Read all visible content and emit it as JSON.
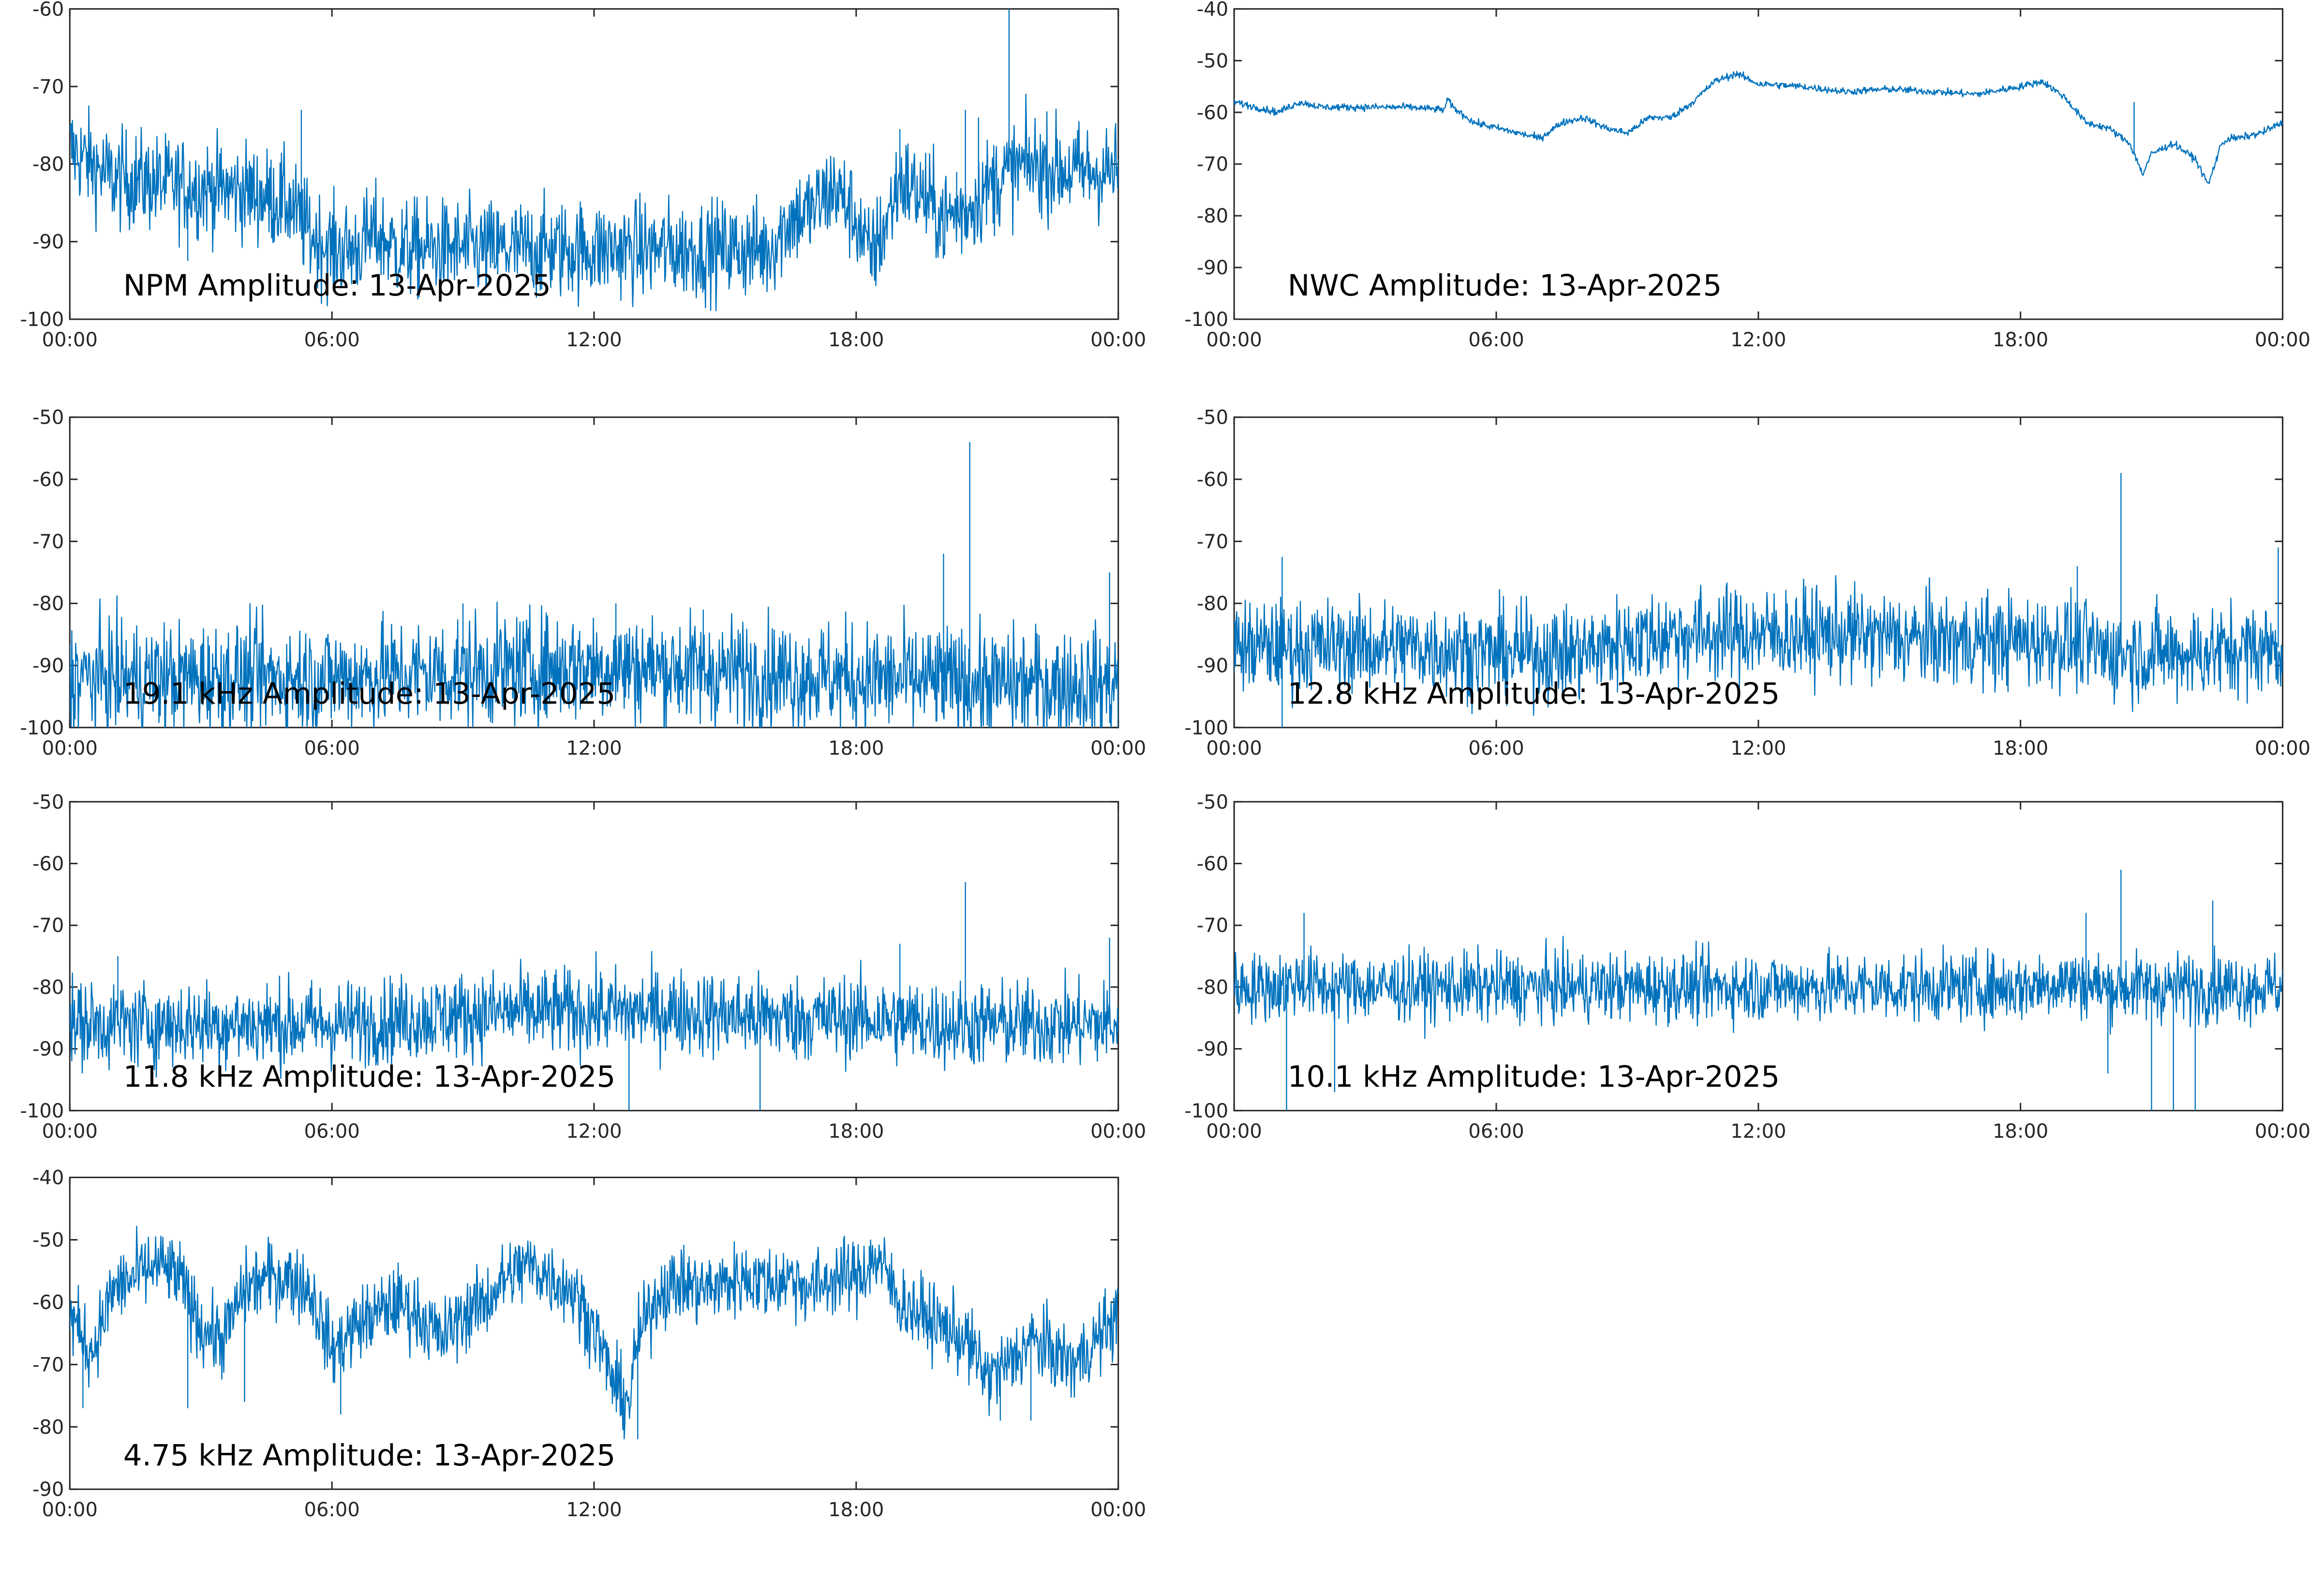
{
  "trace_color": "#0072bd",
  "axis_color": "#262626",
  "chart_data": [
    {
      "type": "line",
      "title": "NPM Amplitude: 13-Apr-2025",
      "x_ticks": [
        "00:00",
        "06:00",
        "12:00",
        "18:00",
        "00:00"
      ],
      "y_ticks": [
        -60,
        -70,
        -80,
        -90,
        -100
      ],
      "ylim": [
        -100,
        -60
      ],
      "xlim_hours": [
        0,
        24
      ],
      "noise": 3.2,
      "series": [
        {
          "x_hours": [
            0,
            0.5,
            1.0,
            1.5,
            2.0,
            3.0,
            4.0,
            5.0,
            5.5,
            6.0,
            6.5,
            7.0,
            7.5,
            8,
            9,
            10,
            11,
            12,
            13,
            14,
            15,
            16,
            16.5,
            17,
            17.5,
            18,
            18.3,
            18.6,
            19,
            19.5,
            20,
            20.5,
            21,
            21.5,
            22,
            23,
            24
          ],
          "y_db": [
            -78,
            -80,
            -82,
            -82,
            -82.5,
            -83,
            -83.5,
            -85,
            -89,
            -91,
            -91,
            -89,
            -91,
            -91,
            -91,
            -91,
            -91,
            -91,
            -91,
            -91,
            -91,
            -91,
            -87,
            -86,
            -83,
            -87,
            -92,
            -89,
            -82,
            -84,
            -87,
            -86,
            -83,
            -81,
            -80,
            -81,
            -81
          ]
        }
      ],
      "spikes": [
        {
          "x_hour": 2.7,
          "y_db": -92.5
        },
        {
          "x_hour": 5.3,
          "y_db": -73
        },
        {
          "x_hour": 20.5,
          "y_db": -73
        },
        {
          "x_hour": 19.0,
          "y_db": -75.5
        },
        {
          "x_hour": 20.8,
          "y_db": -74
        },
        {
          "x_hour": 20.3,
          "y_db": -81
        },
        {
          "x_hour": 21.5,
          "y_db": -60
        }
      ]
    },
    {
      "type": "line",
      "title": "NWC Amplitude: 13-Apr-2025",
      "x_ticks": [
        "00:00",
        "06:00",
        "12:00",
        "18:00",
        "00:00"
      ],
      "y_ticks": [
        -40,
        -50,
        -60,
        -70,
        -80,
        -90,
        -100
      ],
      "ylim": [
        -100,
        -40
      ],
      "xlim_hours": [
        0,
        24
      ],
      "noise": 0.35,
      "series": [
        {
          "x_hours": [
            0,
            0.5,
            1.0,
            1.5,
            2.0,
            3.0,
            4.0,
            4.8,
            4.9,
            5.0,
            5.5,
            6.0,
            7.0,
            7.5,
            8.0,
            8.5,
            9.0,
            9.5,
            10.0,
            10.5,
            11.0,
            11.5,
            12.0,
            13.0,
            14.0,
            15.0,
            16.0,
            17.0,
            18.0,
            18.5,
            19.0,
            19.5,
            20.0,
            20.5,
            20.8,
            21.0,
            21.5,
            22.0,
            22.3,
            22.6,
            22.8,
            23.0,
            23.5,
            24.0
          ],
          "y_db": [
            -58,
            -59,
            -60,
            -58,
            -59,
            -59,
            -59,
            -59.5,
            -57.5,
            -59,
            -62,
            -63,
            -65,
            -62,
            -61,
            -63,
            -64,
            -61,
            -61,
            -58,
            -54,
            -52.5,
            -54.5,
            -55,
            -56,
            -55.5,
            -56,
            -56.5,
            -55,
            -54,
            -57,
            -62,
            -63,
            -66,
            -72,
            -68,
            -66,
            -69,
            -74,
            -66,
            -65,
            -65,
            -64,
            -62
          ]
        }
      ],
      "spikes": [
        {
          "x_hour": 20.6,
          "y_db": -58
        }
      ]
    },
    {
      "type": "line",
      "title": "19.1 kHz Amplitude: 13-Apr-2025",
      "x_ticks": [
        "00:00",
        "06:00",
        "12:00",
        "18:00",
        "00:00"
      ],
      "y_ticks": [
        -50,
        -60,
        -70,
        -80,
        -90,
        -100
      ],
      "ylim": [
        -100,
        -50
      ],
      "xlim_hours": [
        0,
        24
      ],
      "noise": 4.5,
      "series": [
        {
          "x_hours": [
            0,
            3,
            6,
            9,
            12,
            15,
            18,
            21,
            24
          ],
          "y_db": [
            -92,
            -92,
            -92,
            -91,
            -90,
            -91,
            -92,
            -93,
            -93
          ]
        }
      ],
      "spikes": [
        {
          "x_hour": 20.6,
          "y_db": -54
        },
        {
          "x_hour": 20.0,
          "y_db": -72
        },
        {
          "x_hour": 23.8,
          "y_db": -75
        },
        {
          "x_hour": 9.0,
          "y_db": -80
        },
        {
          "x_hour": 12.5,
          "y_db": -80
        },
        {
          "x_hour": 14.5,
          "y_db": -81
        }
      ]
    },
    {
      "type": "line",
      "title": "12.8 kHz Amplitude: 13-Apr-2025",
      "x_ticks": [
        "00:00",
        "06:00",
        "12:00",
        "18:00",
        "00:00"
      ],
      "y_ticks": [
        -50,
        -60,
        -70,
        -80,
        -90,
        -100
      ],
      "ylim": [
        -100,
        -50
      ],
      "xlim_hours": [
        0,
        24
      ],
      "noise": 3.8,
      "series": [
        {
          "x_hours": [
            0,
            2,
            4,
            6,
            8,
            9,
            10,
            12,
            14,
            16,
            18,
            19,
            20,
            22,
            24
          ],
          "y_db": [
            -87,
            -87,
            -87,
            -88,
            -88,
            -86,
            -85,
            -85,
            -85,
            -86,
            -86,
            -86,
            -88,
            -88,
            -87
          ]
        }
      ],
      "spikes": [
        {
          "x_hour": 1.1,
          "y_db": -72.5
        },
        {
          "x_hour": 20.3,
          "y_db": -59
        },
        {
          "x_hour": 19.3,
          "y_db": -74
        },
        {
          "x_hour": 23.9,
          "y_db": -71
        },
        {
          "x_hour": 1.1,
          "y_db": -100
        }
      ]
    },
    {
      "type": "line",
      "title": "11.8 kHz Amplitude: 13-Apr-2025",
      "x_ticks": [
        "00:00",
        "06:00",
        "12:00",
        "18:00",
        "00:00"
      ],
      "y_ticks": [
        -50,
        -60,
        -70,
        -80,
        -90,
        -100
      ],
      "ylim": [
        -100,
        -50
      ],
      "xlim_hours": [
        0,
        24
      ],
      "noise": 3.5,
      "series": [
        {
          "x_hours": [
            0,
            2,
            4,
            6,
            8,
            10,
            12,
            14,
            16,
            18,
            20,
            22,
            24
          ],
          "y_db": [
            -86,
            -86,
            -86,
            -86,
            -85,
            -84,
            -84,
            -84,
            -85,
            -85,
            -86,
            -86,
            -86
          ]
        }
      ],
      "spikes": [
        {
          "x_hour": 20.5,
          "y_db": -63
        },
        {
          "x_hour": 1.1,
          "y_db": -75
        },
        {
          "x_hour": 19.0,
          "y_db": -73
        },
        {
          "x_hour": 23.8,
          "y_db": -72
        },
        {
          "x_hour": 15.8,
          "y_db": -100
        },
        {
          "x_hour": 12.8,
          "y_db": -100
        }
      ]
    },
    {
      "type": "line",
      "title": "10.1 kHz Amplitude: 13-Apr-2025",
      "x_ticks": [
        "00:00",
        "06:00",
        "12:00",
        "18:00",
        "00:00"
      ],
      "y_ticks": [
        -50,
        -60,
        -70,
        -80,
        -90,
        -100
      ],
      "ylim": [
        -100,
        -50
      ],
      "xlim_hours": [
        0,
        24
      ],
      "noise": 2.8,
      "series": [
        {
          "x_hours": [
            0,
            1,
            1.5,
            2,
            3,
            4,
            6,
            8,
            8.5,
            9,
            12,
            15,
            18,
            19,
            20,
            22,
            24
          ],
          "y_db": [
            -80,
            -80,
            -79,
            -80,
            -80,
            -80,
            -80,
            -80,
            -80,
            -80,
            -80,
            -80,
            -80,
            -79,
            -80,
            -80,
            -80
          ]
        }
      ],
      "spikes": [
        {
          "x_hour": 1.2,
          "y_db": -100
        },
        {
          "x_hour": 1.6,
          "y_db": -68
        },
        {
          "x_hour": 2.3,
          "y_db": -97
        },
        {
          "x_hour": 20.3,
          "y_db": -61
        },
        {
          "x_hour": 21.0,
          "y_db": -100
        },
        {
          "x_hour": 21.5,
          "y_db": -100
        },
        {
          "x_hour": 22.0,
          "y_db": -100
        },
        {
          "x_hour": 22.4,
          "y_db": -66
        },
        {
          "x_hour": 19.5,
          "y_db": -68
        },
        {
          "x_hour": 20.0,
          "y_db": -94
        }
      ]
    },
    {
      "type": "line",
      "title": "4.75 kHz Amplitude: 13-Apr-2025",
      "x_ticks": [
        "00:00",
        "06:00",
        "12:00",
        "18:00",
        "00:00"
      ],
      "y_ticks": [
        -40,
        -50,
        -60,
        -70,
        -80,
        -90
      ],
      "ylim": [
        -90,
        -40
      ],
      "xlim_hours": [
        0,
        24
      ],
      "noise": 3.0,
      "series": [
        {
          "x_hours": [
            0,
            0.5,
            1,
            1.5,
            2,
            2.5,
            3,
            3.5,
            4,
            4.5,
            5,
            5.5,
            6,
            6.5,
            7,
            7.5,
            8,
            8.5,
            9,
            9.5,
            10,
            10.5,
            11,
            11.5,
            12,
            12.5,
            12.8,
            13,
            13.5,
            14,
            14.5,
            15,
            15.5,
            16,
            16.5,
            17,
            17.5,
            18,
            18.5,
            19,
            19.5,
            20,
            20.5,
            21,
            21.5,
            22,
            22.5,
            23,
            23.5,
            24
          ],
          "y_db": [
            -62,
            -68,
            -58,
            -56,
            -54,
            -56,
            -64,
            -66,
            -58,
            -56,
            -56,
            -58,
            -68,
            -64,
            -62,
            -60,
            -62,
            -66,
            -62,
            -60,
            -56,
            -54,
            -56,
            -58,
            -64,
            -74,
            -76,
            -66,
            -58,
            -57,
            -58,
            -57,
            -56,
            -57,
            -56,
            -58,
            -56,
            -56,
            -53,
            -60,
            -62,
            -64,
            -66,
            -72,
            -70,
            -66,
            -68,
            -70,
            -66,
            -62
          ]
        }
      ],
      "spikes": [
        {
          "x_hour": 0.3,
          "y_db": -77
        },
        {
          "x_hour": 2.7,
          "y_db": -77
        },
        {
          "x_hour": 4.0,
          "y_db": -76
        },
        {
          "x_hour": 6.2,
          "y_db": -78
        },
        {
          "x_hour": 13.0,
          "y_db": -82
        },
        {
          "x_hour": 18.3,
          "y_db": -51
        },
        {
          "x_hour": 21.3,
          "y_db": -79
        },
        {
          "x_hour": 22.0,
          "y_db": -79
        },
        {
          "x_hour": 10.3,
          "y_db": -51
        }
      ]
    }
  ]
}
